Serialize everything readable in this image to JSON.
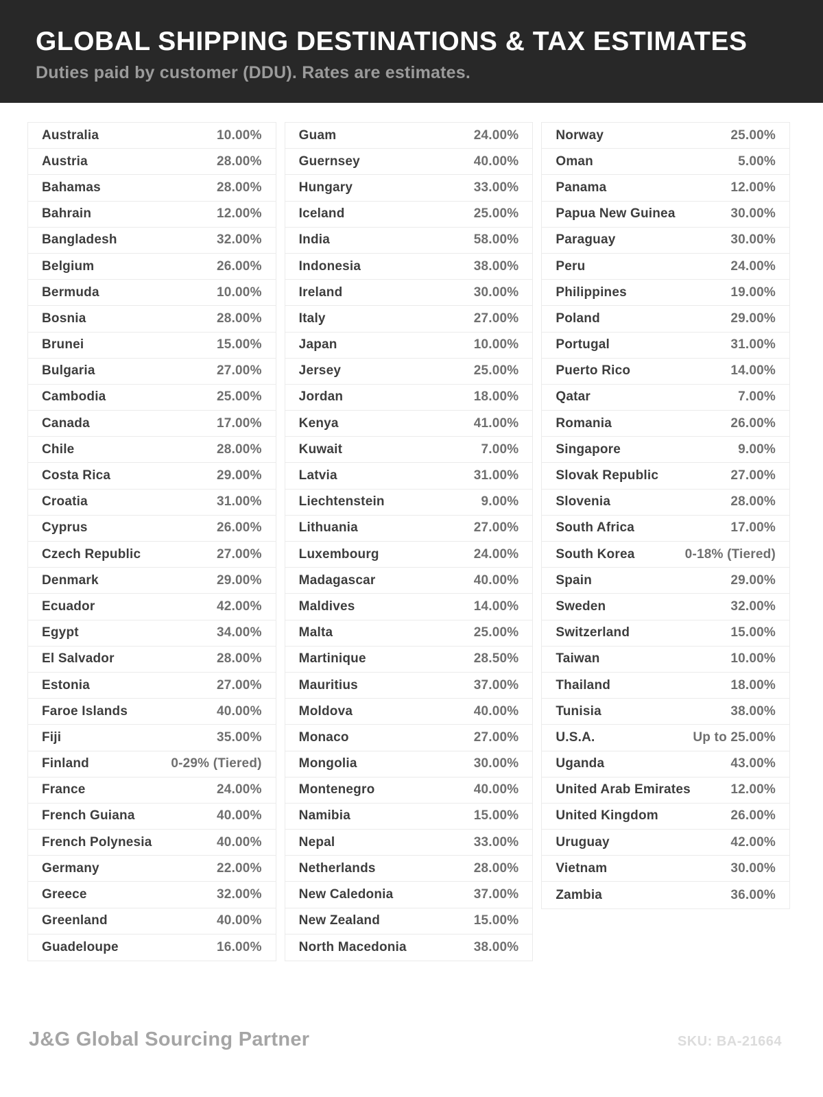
{
  "header": {
    "title": "GLOBAL SHIPPING DESTINATIONS & TAX ESTIMATES",
    "subtitle": "Duties paid by customer (DDU). Rates are estimates."
  },
  "colors": {
    "header_bg": "#282828",
    "title_text": "#ffffff",
    "subtitle_text": "#9b9b9b",
    "country_text": "#3d3d3d",
    "rate_text": "#6f6f6f",
    "row_border": "#ebebeb",
    "footer_brand": "#a5a5a5",
    "footer_sku": "#dcdcdc"
  },
  "table": {
    "columns": {
      "col1": [
        {
          "country": "Australia",
          "rate": "10.00%"
        },
        {
          "country": "Austria",
          "rate": "28.00%"
        },
        {
          "country": "Bahamas",
          "rate": "28.00%"
        },
        {
          "country": "Bahrain",
          "rate": "12.00%"
        },
        {
          "country": "Bangladesh",
          "rate": "32.00%"
        },
        {
          "country": "Belgium",
          "rate": "26.00%"
        },
        {
          "country": "Bermuda",
          "rate": "10.00%"
        },
        {
          "country": "Bosnia",
          "rate": "28.00%"
        },
        {
          "country": "Brunei",
          "rate": "15.00%"
        },
        {
          "country": "Bulgaria",
          "rate": "27.00%"
        },
        {
          "country": "Cambodia",
          "rate": "25.00%"
        },
        {
          "country": "Canada",
          "rate": "17.00%"
        },
        {
          "country": "Chile",
          "rate": "28.00%"
        },
        {
          "country": "Costa Rica",
          "rate": "29.00%"
        },
        {
          "country": "Croatia",
          "rate": "31.00%"
        },
        {
          "country": "Cyprus",
          "rate": "26.00%"
        },
        {
          "country": "Czech Republic",
          "rate": "27.00%"
        },
        {
          "country": "Denmark",
          "rate": "29.00%"
        },
        {
          "country": "Ecuador",
          "rate": "42.00%"
        },
        {
          "country": "Egypt",
          "rate": "34.00%"
        },
        {
          "country": "El Salvador",
          "rate": "28.00%"
        },
        {
          "country": "Estonia",
          "rate": "27.00%"
        },
        {
          "country": "Faroe Islands",
          "rate": "40.00%"
        },
        {
          "country": "Fiji",
          "rate": "35.00%"
        },
        {
          "country": "Finland",
          "rate": "0-29% (Tiered)"
        },
        {
          "country": "France",
          "rate": "24.00%"
        },
        {
          "country": "French Guiana",
          "rate": "40.00%"
        },
        {
          "country": "French Polynesia",
          "rate": "40.00%"
        },
        {
          "country": "Germany",
          "rate": "22.00%"
        },
        {
          "country": "Greece",
          "rate": "32.00%"
        },
        {
          "country": "Greenland",
          "rate": "40.00%"
        },
        {
          "country": "Guadeloupe",
          "rate": "16.00%"
        }
      ],
      "col2": [
        {
          "country": "Guam",
          "rate": "24.00%"
        },
        {
          "country": "Guernsey",
          "rate": "40.00%"
        },
        {
          "country": "Hungary",
          "rate": "33.00%"
        },
        {
          "country": "Iceland",
          "rate": "25.00%"
        },
        {
          "country": "India",
          "rate": "58.00%"
        },
        {
          "country": "Indonesia",
          "rate": "38.00%"
        },
        {
          "country": "Ireland",
          "rate": "30.00%"
        },
        {
          "country": "Italy",
          "rate": "27.00%"
        },
        {
          "country": "Japan",
          "rate": "10.00%"
        },
        {
          "country": "Jersey",
          "rate": "25.00%"
        },
        {
          "country": "Jordan",
          "rate": "18.00%"
        },
        {
          "country": "Kenya",
          "rate": "41.00%"
        },
        {
          "country": "Kuwait",
          "rate": "7.00%"
        },
        {
          "country": "Latvia",
          "rate": "31.00%"
        },
        {
          "country": "Liechtenstein",
          "rate": "9.00%"
        },
        {
          "country": "Lithuania",
          "rate": "27.00%"
        },
        {
          "country": "Luxembourg",
          "rate": "24.00%"
        },
        {
          "country": "Madagascar",
          "rate": "40.00%"
        },
        {
          "country": "Maldives",
          "rate": "14.00%"
        },
        {
          "country": "Malta",
          "rate": "25.00%"
        },
        {
          "country": "Martinique",
          "rate": "28.50%"
        },
        {
          "country": "Mauritius",
          "rate": "37.00%"
        },
        {
          "country": "Moldova",
          "rate": "40.00%"
        },
        {
          "country": "Monaco",
          "rate": "27.00%"
        },
        {
          "country": "Mongolia",
          "rate": "30.00%"
        },
        {
          "country": "Montenegro",
          "rate": "40.00%"
        },
        {
          "country": "Namibia",
          "rate": "15.00%"
        },
        {
          "country": "Nepal",
          "rate": "33.00%"
        },
        {
          "country": "Netherlands",
          "rate": "28.00%"
        },
        {
          "country": "New Caledonia",
          "rate": "37.00%"
        },
        {
          "country": "New Zealand",
          "rate": "15.00%"
        },
        {
          "country": "North Macedonia",
          "rate": "38.00%"
        }
      ],
      "col3": [
        {
          "country": "Norway",
          "rate": "25.00%"
        },
        {
          "country": "Oman",
          "rate": "5.00%"
        },
        {
          "country": "Panama",
          "rate": "12.00%"
        },
        {
          "country": "Papua New Guinea",
          "rate": "30.00%"
        },
        {
          "country": "Paraguay",
          "rate": "30.00%"
        },
        {
          "country": "Peru",
          "rate": "24.00%"
        },
        {
          "country": "Philippines",
          "rate": "19.00%"
        },
        {
          "country": "Poland",
          "rate": "29.00%"
        },
        {
          "country": "Portugal",
          "rate": "31.00%"
        },
        {
          "country": "Puerto Rico",
          "rate": "14.00%"
        },
        {
          "country": "Qatar",
          "rate": "7.00%"
        },
        {
          "country": "Romania",
          "rate": "26.00%"
        },
        {
          "country": "Singapore",
          "rate": "9.00%"
        },
        {
          "country": "Slovak Republic",
          "rate": "27.00%"
        },
        {
          "country": "Slovenia",
          "rate": "28.00%"
        },
        {
          "country": "South Africa",
          "rate": "17.00%"
        },
        {
          "country": "South Korea",
          "rate": "0-18% (Tiered)"
        },
        {
          "country": "Spain",
          "rate": "29.00%"
        },
        {
          "country": "Sweden",
          "rate": "32.00%"
        },
        {
          "country": "Switzerland",
          "rate": "15.00%"
        },
        {
          "country": "Taiwan",
          "rate": "10.00%"
        },
        {
          "country": "Thailand",
          "rate": "18.00%"
        },
        {
          "country": "Tunisia",
          "rate": "38.00%"
        },
        {
          "country": "U.S.A.",
          "rate": "Up to 25.00%"
        },
        {
          "country": "Uganda",
          "rate": "43.00%"
        },
        {
          "country": "United Arab Emirates",
          "rate": "12.00%"
        },
        {
          "country": "United Kingdom",
          "rate": "26.00%"
        },
        {
          "country": "Uruguay",
          "rate": "42.00%"
        },
        {
          "country": "Vietnam",
          "rate": "30.00%"
        },
        {
          "country": "Zambia",
          "rate": "36.00%"
        }
      ]
    }
  },
  "footer": {
    "brand": "J&G Global Sourcing Partner",
    "sku": "SKU: BA-21664"
  }
}
